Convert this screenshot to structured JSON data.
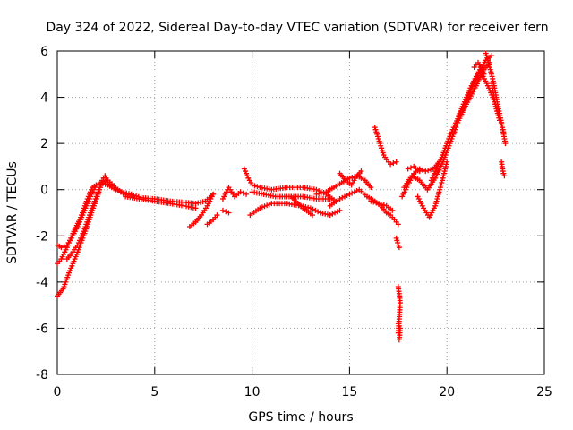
{
  "chart_data": {
    "type": "scatter",
    "title": "Day 324 of 2022, Sidereal Day-to-day VTEC variation (SDTVAR) for receiver fern",
    "xlabel": "GPS time / hours",
    "ylabel": "SDTVAR / TECUs",
    "xlim": [
      0,
      25
    ],
    "ylim": [
      -8,
      6
    ],
    "x_ticks": [
      0,
      5,
      10,
      15,
      20,
      25
    ],
    "y_ticks": [
      -8,
      -6,
      -4,
      -2,
      0,
      2,
      4,
      6
    ],
    "x_tick_labels": [
      "0",
      "5",
      "10",
      "15",
      "20",
      "25"
    ],
    "y_tick_labels": [
      "-8",
      "-6",
      "-4",
      "-2",
      "0",
      "2",
      "4",
      "6"
    ],
    "grid": true,
    "marker": "+",
    "marker_color": "#ff0000",
    "series": [
      {
        "name": "SDTVAR",
        "segments": [
          {
            "x": [
              0.0,
              0.3,
              0.6,
              1.0,
              1.4,
              1.8,
              2.1,
              2.3,
              2.45,
              2.6,
              2.9,
              3.3,
              3.8,
              4.3,
              5.0,
              5.8,
              6.5,
              7.1,
              7.6,
              8.0
            ],
            "y": [
              -4.6,
              -4.3,
              -3.6,
              -2.8,
              -1.9,
              -0.9,
              -0.2,
              0.4,
              0.6,
              0.3,
              0.1,
              -0.1,
              -0.2,
              -0.35,
              -0.4,
              -0.5,
              -0.55,
              -0.6,
              -0.5,
              -0.2
            ]
          },
          {
            "x": [
              0.0,
              0.2,
              0.5,
              0.8,
              1.2,
              1.5,
              1.8,
              2.2,
              2.6,
              3.0,
              3.5
            ],
            "y": [
              -3.2,
              -3.0,
              -2.5,
              -1.9,
              -1.2,
              -0.5,
              0.1,
              0.3,
              0.2,
              0.0,
              -0.2
            ]
          },
          {
            "x": [
              0.0,
              0.2,
              0.5,
              0.8,
              1.1,
              1.4,
              1.7,
              2.0
            ],
            "y": [
              -2.4,
              -2.5,
              -2.4,
              -2.0,
              -1.5,
              -0.9,
              -0.3,
              0.2
            ]
          },
          {
            "x": [
              0.5,
              0.8,
              1.1,
              1.4,
              1.7,
              2.0,
              2.3,
              2.6,
              3.0
            ],
            "y": [
              -3.0,
              -2.7,
              -2.3,
              -1.7,
              -1.0,
              -0.3,
              0.3,
              0.4,
              0.1
            ]
          },
          {
            "x": [
              3.5,
              4.2,
              5.0,
              5.8,
              6.5,
              7.1
            ],
            "y": [
              -0.3,
              -0.4,
              -0.5,
              -0.6,
              -0.7,
              -0.8
            ]
          },
          {
            "x": [
              6.8,
              7.1,
              7.4,
              7.7,
              8.0
            ],
            "y": [
              -1.6,
              -1.4,
              -1.1,
              -0.7,
              -0.2
            ]
          },
          {
            "x": [
              7.7,
              8.0,
              8.2
            ],
            "y": [
              -1.5,
              -1.3,
              -1.1
            ]
          },
          {
            "x": [
              8.5,
              8.8,
              9.1,
              9.4,
              9.7
            ],
            "y": [
              -0.4,
              0.1,
              -0.3,
              -0.1,
              -0.2
            ]
          },
          {
            "x": [
              8.5,
              8.8
            ],
            "y": [
              -0.9,
              -1.0
            ]
          },
          {
            "x": [
              9.6,
              9.8,
              10.0,
              10.4,
              11.0,
              11.8,
              12.6,
              13.3,
              13.8,
              14.3
            ],
            "y": [
              0.9,
              0.5,
              0.2,
              0.1,
              0.0,
              0.1,
              0.1,
              0.0,
              -0.2,
              -0.5
            ]
          },
          {
            "x": [
              9.9,
              10.4,
              11.0,
              11.8,
              12.5,
              13.0,
              13.5,
              14.0,
              14.5
            ],
            "y": [
              -1.1,
              -0.8,
              -0.6,
              -0.6,
              -0.7,
              -0.8,
              -1.0,
              -1.1,
              -0.9
            ]
          },
          {
            "x": [
              10.0,
              10.6,
              11.2,
              11.9,
              12.6,
              13.3,
              14.0
            ],
            "y": [
              -0.1,
              -0.2,
              -0.3,
              -0.3,
              -0.3,
              -0.4,
              -0.4
            ]
          },
          {
            "x": [
              12.0,
              12.6,
              13.1
            ],
            "y": [
              -0.3,
              -0.8,
              -1.1
            ]
          },
          {
            "x": [
              13.3,
              13.8,
              14.2,
              14.6,
              15.0,
              15.4,
              15.8,
              16.1
            ],
            "y": [
              -0.2,
              -0.1,
              0.1,
              0.3,
              0.5,
              0.6,
              0.4,
              0.1
            ]
          },
          {
            "x": [
              14.0,
              14.5,
              15.0,
              15.5,
              15.9,
              16.3,
              16.6,
              16.9
            ],
            "y": [
              -0.7,
              -0.4,
              -0.2,
              0.0,
              -0.3,
              -0.5,
              -0.7,
              -1.0
            ]
          },
          {
            "x": [
              14.5,
              14.8,
              15.1,
              15.3,
              15.6
            ],
            "y": [
              0.7,
              0.4,
              0.2,
              0.5,
              0.8
            ]
          },
          {
            "x": [
              16.1,
              16.5,
              16.9,
              17.2
            ],
            "y": [
              -0.5,
              -0.6,
              -0.7,
              -0.9
            ]
          },
          {
            "x": [
              16.3,
              16.45,
              16.6,
              16.75,
              16.9,
              17.1,
              17.4
            ],
            "y": [
              2.7,
              2.3,
              1.9,
              1.5,
              1.3,
              1.1,
              1.2
            ]
          },
          {
            "x": [
              16.9,
              17.1,
              17.3,
              17.5
            ],
            "y": [
              -1.0,
              -1.1,
              -1.3,
              -1.5
            ]
          },
          {
            "x": [
              17.4,
              17.5,
              17.55
            ],
            "y": [
              -2.1,
              -2.4,
              -2.5
            ]
          },
          {
            "x": [
              17.5,
              17.55,
              17.6,
              17.55,
              17.5
            ],
            "y": [
              -4.2,
              -4.5,
              -4.9,
              -5.6,
              -6.2
            ]
          },
          {
            "x": [
              17.5,
              17.6,
              17.55
            ],
            "y": [
              -5.8,
              -6.0,
              -6.5
            ]
          },
          {
            "x": [
              17.7,
              18.0,
              18.3,
              18.6,
              18.9,
              19.3,
              19.7,
              20.0,
              20.4,
              20.8,
              21.2,
              21.6,
              22.0,
              22.3
            ],
            "y": [
              -0.3,
              0.2,
              0.7,
              0.9,
              0.8,
              0.9,
              1.3,
              2.0,
              2.8,
              3.5,
              4.3,
              5.0,
              5.6,
              5.8
            ]
          },
          {
            "x": [
              17.8,
              18.2,
              18.6,
              19.0,
              19.4,
              19.8,
              20.2,
              20.6,
              21.0,
              21.5,
              21.9,
              22.2
            ],
            "y": [
              0.1,
              0.6,
              0.4,
              0.0,
              0.5,
              1.2,
              2.1,
              3.0,
              3.7,
              4.5,
              5.2,
              5.5
            ]
          },
          {
            "x": [
              18.5,
              18.8,
              19.1,
              19.4,
              19.7,
              20.0
            ],
            "y": [
              -0.3,
              -0.8,
              -1.2,
              -0.7,
              0.2,
              1.2
            ]
          },
          {
            "x": [
              18.0,
              18.3,
              18.6
            ],
            "y": [
              0.9,
              1.0,
              0.8
            ]
          },
          {
            "x": [
              19.2,
              19.5,
              19.8,
              20.1,
              20.4
            ],
            "y": [
              0.4,
              1.0,
              1.5,
              2.2,
              2.8
            ]
          },
          {
            "x": [
              20.6,
              20.9,
              21.2,
              21.5,
              21.7
            ],
            "y": [
              3.2,
              3.8,
              4.4,
              4.9,
              5.2
            ]
          },
          {
            "x": [
              21.4,
              21.6,
              21.9
            ],
            "y": [
              5.3,
              5.5,
              5.0
            ]
          },
          {
            "x": [
              22.0,
              22.2,
              22.4,
              22.6,
              22.8,
              23.0
            ],
            "y": [
              5.9,
              5.3,
              4.6,
              3.7,
              2.9,
              2.0
            ]
          },
          {
            "x": [
              21.8,
              22.1,
              22.4,
              22.7,
              22.9
            ],
            "y": [
              5.0,
              4.5,
              3.9,
              3.2,
              2.5
            ]
          },
          {
            "x": [
              22.3,
              22.5,
              22.7
            ],
            "y": [
              4.6,
              3.6,
              3.0
            ]
          },
          {
            "x": [
              22.8,
              22.85,
              22.9,
              22.95
            ],
            "y": [
              1.2,
              0.9,
              0.7,
              0.6
            ]
          }
        ]
      }
    ]
  }
}
